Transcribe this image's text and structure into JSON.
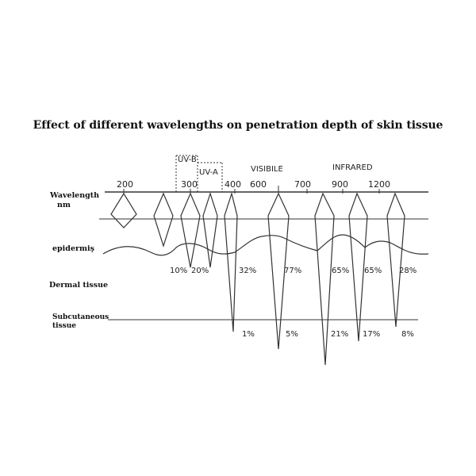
{
  "title": "Effect of different wavelengths on penetration depth of skin tissue",
  "side_labels": {
    "wavelength": "Wavelength",
    "nm": "nm",
    "epidermis": "epidermiş",
    "dermal": "Dermal tissue",
    "subcutaneous_1": "Subcutaneous",
    "subcutaneous_2": "tissue"
  },
  "band_labels": {
    "uvb": "UV-B",
    "uva": "UV-A",
    "visible": "VISIBILE",
    "infrared": "INFRARED"
  },
  "ticks": [
    "200",
    "300",
    "400",
    "600",
    "700",
    "900",
    "1200"
  ],
  "dermal_percents": [
    "10%",
    "20%",
    "32%",
    "77%",
    "65%",
    "65%",
    "28%"
  ],
  "subcutaneous_percents": [
    "1%",
    "5%",
    "21%",
    "17%",
    "8%"
  ],
  "colors": {
    "line": "#333333",
    "text": "#111111"
  }
}
